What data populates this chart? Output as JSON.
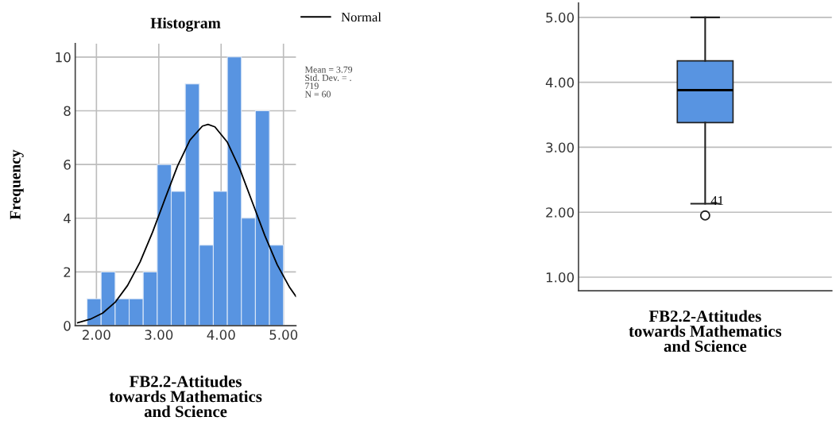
{
  "chart_data": [
    {
      "type": "histogram",
      "title": "Histogram",
      "xlabel": "FB2.2-Attitudes\ntowards Mathematics\nand Science",
      "ylabel": "Frequency",
      "bins": [
        1.85,
        2.075,
        2.3,
        2.525,
        2.75,
        2.975,
        3.2,
        3.425,
        3.65,
        3.875,
        4.1,
        4.325,
        4.55,
        4.775,
        5.0
      ],
      "values": [
        1,
        2,
        1,
        1,
        2,
        6,
        5,
        9,
        3,
        5,
        10,
        4,
        8,
        3
      ],
      "color": "#5894e1",
      "series": [
        {
          "type": "line",
          "name": "Normal",
          "color": "#000000",
          "x": [
            1.7,
            1.9,
            2.1,
            2.3,
            2.5,
            2.7,
            2.9,
            3.1,
            3.3,
            3.5,
            3.7,
            3.79,
            3.9,
            4.1,
            4.3,
            4.5,
            4.7,
            4.9,
            5.1,
            5.2
          ],
          "values": [
            0.11,
            0.24,
            0.47,
            0.87,
            1.5,
            2.37,
            3.48,
            4.72,
            5.94,
            6.91,
            7.43,
            7.49,
            7.4,
            6.83,
            5.83,
            4.6,
            3.36,
            2.27,
            1.42,
            1.09
          ]
        }
      ],
      "annotations": [
        "Mean = 3.79\nStd. Dev. = .\n719\nN = 60"
      ],
      "xlim": [
        1.66,
        5.2
      ],
      "xticks": [
        {
          "value": 2,
          "label": "2.00"
        },
        {
          "value": 3,
          "label": "3.00"
        },
        {
          "value": 4,
          "label": "4.00"
        },
        {
          "value": 5,
          "label": "5.00"
        }
      ],
      "ylim": [
        0,
        10.5
      ],
      "yticks": [
        0,
        2,
        4,
        6,
        8,
        10
      ],
      "grid": true,
      "legend": "top right",
      "line_style": "solid",
      "marker": "none"
    },
    {
      "type": "box",
      "xlabel": "FB2.2-Attitudes\ntowards Mathematics\nand Science",
      "categories": [
        null
      ],
      "boxes": [
        {
          "low": 2.13,
          "q1": 3.38,
          "median": 3.88,
          "q3": 4.33,
          "high": 5.0,
          "outliers": [
            1.95
          ]
        }
      ],
      "color": "#5894e1",
      "annotations": [
        "41"
      ],
      "ylim": [
        0.79,
        5.22
      ],
      "yticks": [
        {
          "value": 1,
          "label": "1.00"
        },
        {
          "value": 2,
          "label": "2.00"
        },
        {
          "value": 3,
          "label": "3.00"
        },
        {
          "value": 4,
          "label": "4.00"
        },
        {
          "value": 5,
          "label": "5.00"
        }
      ],
      "grid": "y"
    }
  ]
}
